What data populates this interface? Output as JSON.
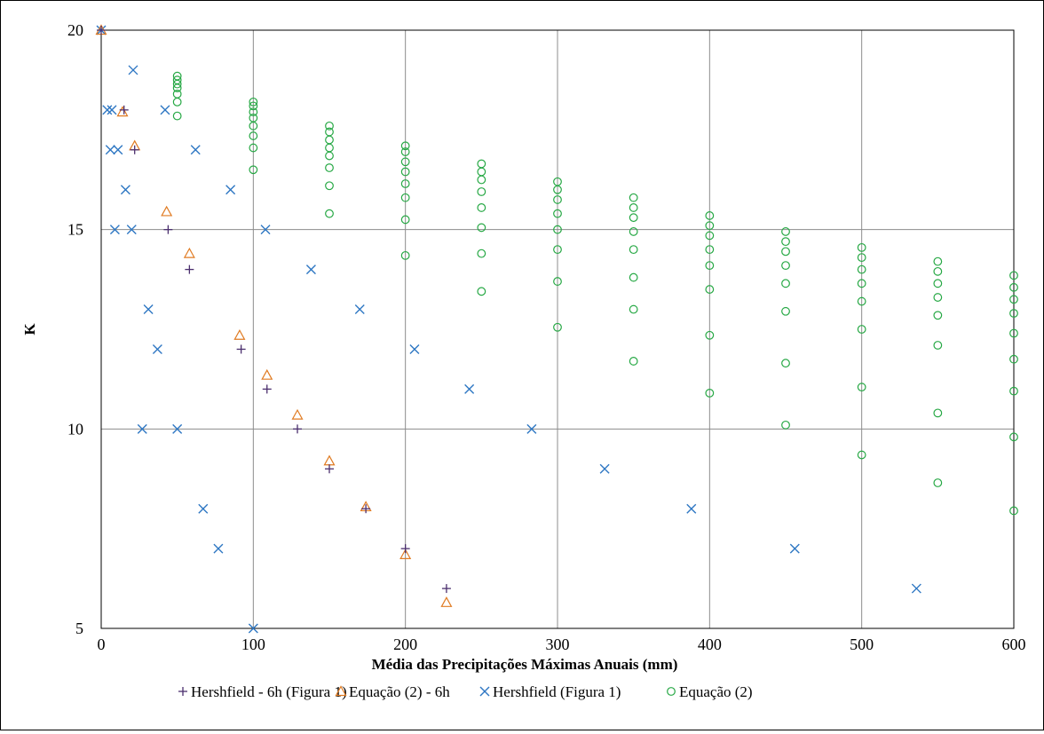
{
  "chart_data": {
    "type": "scatter",
    "title": "",
    "xlabel": "Média das Precipitações Máximas Anuais (mm)",
    "ylabel": "K",
    "xlim": [
      0,
      600
    ],
    "ylim": [
      5,
      20
    ],
    "x_ticks": [
      0,
      100,
      200,
      300,
      400,
      500,
      600
    ],
    "y_ticks": [
      5,
      10,
      15,
      20
    ],
    "x_tick_labels": [
      "0",
      "100",
      "200",
      "300",
      "400",
      "500",
      "600"
    ],
    "y_tick_labels": [
      "5",
      "10",
      "15",
      "20"
    ],
    "grid": true,
    "legend_position": "bottom",
    "series": [
      {
        "name": "Hershfield - 6h (Figura 1)",
        "marker": "plus",
        "color": "#4b2f6e",
        "points": [
          [
            0,
            20
          ],
          [
            15,
            18
          ],
          [
            22,
            17
          ],
          [
            44,
            15
          ],
          [
            58,
            14
          ],
          [
            92,
            12
          ],
          [
            109,
            11
          ],
          [
            129,
            10
          ],
          [
            150,
            9
          ],
          [
            174,
            8
          ],
          [
            200,
            7
          ],
          [
            227,
            6
          ]
        ]
      },
      {
        "name": "Equação (2) - 6h",
        "marker": "triangle",
        "color": "#e07b22",
        "points": [
          [
            0,
            20
          ],
          [
            14,
            17.95
          ],
          [
            22,
            17.1
          ],
          [
            43,
            15.45
          ],
          [
            58,
            14.4
          ],
          [
            91,
            12.35
          ],
          [
            109,
            11.35
          ],
          [
            129,
            10.35
          ],
          [
            150,
            9.2
          ],
          [
            174,
            8.05
          ],
          [
            200,
            6.85
          ],
          [
            227,
            5.65
          ]
        ]
      },
      {
        "name": "Hershfield (Figura 1)",
        "marker": "x",
        "color": "#2e77c3",
        "points": [
          [
            0,
            20
          ],
          [
            4,
            18
          ],
          [
            7,
            18
          ],
          [
            6,
            17
          ],
          [
            11,
            17
          ],
          [
            9,
            15
          ],
          [
            16,
            16
          ],
          [
            20,
            15
          ],
          [
            21,
            19
          ],
          [
            27,
            10
          ],
          [
            31,
            13
          ],
          [
            37,
            12
          ],
          [
            42,
            18
          ],
          [
            50,
            10
          ],
          [
            62,
            17
          ],
          [
            67,
            8
          ],
          [
            77,
            7
          ],
          [
            85,
            16
          ],
          [
            100,
            5
          ],
          [
            108,
            15
          ],
          [
            138,
            14
          ],
          [
            170,
            13
          ],
          [
            206,
            12
          ],
          [
            242,
            11
          ],
          [
            283,
            10
          ],
          [
            331,
            9
          ],
          [
            388,
            8
          ],
          [
            456,
            7
          ],
          [
            536,
            6
          ]
        ]
      },
      {
        "name": "Equação (2)",
        "marker": "circle",
        "color": "#26a844",
        "points": [
          [
            50,
            18.85
          ],
          [
            50,
            18.75
          ],
          [
            50,
            18.65
          ],
          [
            50,
            18.55
          ],
          [
            50,
            18.4
          ],
          [
            50,
            18.2
          ],
          [
            50,
            17.85
          ],
          [
            100,
            18.2
          ],
          [
            100,
            18.1
          ],
          [
            100,
            17.95
          ],
          [
            100,
            17.8
          ],
          [
            100,
            17.6
          ],
          [
            100,
            17.35
          ],
          [
            100,
            17.05
          ],
          [
            100,
            16.5
          ],
          [
            150,
            17.6
          ],
          [
            150,
            17.45
          ],
          [
            150,
            17.25
          ],
          [
            150,
            17.05
          ],
          [
            150,
            16.85
          ],
          [
            150,
            16.55
          ],
          [
            150,
            16.1
          ],
          [
            150,
            15.4
          ],
          [
            200,
            17.1
          ],
          [
            200,
            16.95
          ],
          [
            200,
            16.7
          ],
          [
            200,
            16.45
          ],
          [
            200,
            16.15
          ],
          [
            200,
            15.8
          ],
          [
            200,
            15.25
          ],
          [
            200,
            14.35
          ],
          [
            250,
            16.65
          ],
          [
            250,
            16.45
          ],
          [
            250,
            16.25
          ],
          [
            250,
            15.95
          ],
          [
            250,
            15.55
          ],
          [
            250,
            15.05
          ],
          [
            250,
            14.4
          ],
          [
            250,
            13.45
          ],
          [
            300,
            16.2
          ],
          [
            300,
            16.0
          ],
          [
            300,
            15.75
          ],
          [
            300,
            15.4
          ],
          [
            300,
            15.0
          ],
          [
            300,
            14.5
          ],
          [
            300,
            13.7
          ],
          [
            300,
            12.55
          ],
          [
            350,
            15.8
          ],
          [
            350,
            15.55
          ],
          [
            350,
            15.3
          ],
          [
            350,
            14.95
          ],
          [
            350,
            14.5
          ],
          [
            350,
            13.8
          ],
          [
            350,
            13.0
          ],
          [
            350,
            11.7
          ],
          [
            400,
            15.35
          ],
          [
            400,
            15.1
          ],
          [
            400,
            14.85
          ],
          [
            400,
            14.5
          ],
          [
            400,
            14.1
          ],
          [
            400,
            13.5
          ],
          [
            400,
            12.35
          ],
          [
            400,
            10.9
          ],
          [
            450,
            14.95
          ],
          [
            450,
            14.7
          ],
          [
            450,
            14.45
          ],
          [
            450,
            14.1
          ],
          [
            450,
            13.65
          ],
          [
            450,
            12.95
          ],
          [
            450,
            11.65
          ],
          [
            450,
            10.1
          ],
          [
            500,
            14.55
          ],
          [
            500,
            14.3
          ],
          [
            500,
            14.0
          ],
          [
            500,
            13.65
          ],
          [
            500,
            13.2
          ],
          [
            500,
            12.5
          ],
          [
            500,
            11.05
          ],
          [
            500,
            9.35
          ],
          [
            550,
            14.2
          ],
          [
            550,
            13.95
          ],
          [
            550,
            13.65
          ],
          [
            550,
            13.3
          ],
          [
            550,
            12.85
          ],
          [
            550,
            12.1
          ],
          [
            550,
            10.4
          ],
          [
            550,
            8.65
          ],
          [
            600,
            13.85
          ],
          [
            600,
            13.55
          ],
          [
            600,
            13.25
          ],
          [
            600,
            12.9
          ],
          [
            600,
            12.4
          ],
          [
            600,
            11.75
          ],
          [
            600,
            10.95
          ],
          [
            600,
            9.8
          ],
          [
            600,
            7.95
          ]
        ]
      }
    ]
  }
}
